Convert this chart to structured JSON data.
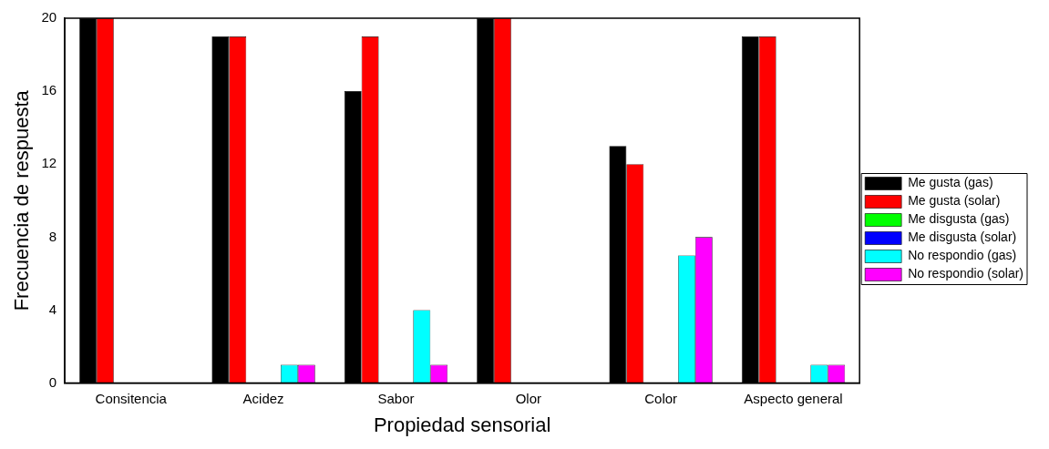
{
  "chart_data": {
    "type": "bar",
    "xlabel": "Propiedad sensorial",
    "ylabel": "Frecuencia de respuesta",
    "categories": [
      "Consitencia",
      "Acidez",
      "Sabor",
      "Olor",
      "Color",
      "Aspecto general"
    ],
    "series": [
      {
        "name": "Me gusta (gas)",
        "color": "#000000",
        "values": [
          20,
          19,
          16,
          20,
          13,
          19
        ]
      },
      {
        "name": "Me gusta (solar)",
        "color": "#ff0000",
        "values": [
          20,
          19,
          19,
          20,
          12,
          19
        ]
      },
      {
        "name": "Me disgusta (gas)",
        "color": "#00ff00",
        "values": [
          0,
          0,
          0,
          0,
          0,
          0
        ]
      },
      {
        "name": "Me disgusta (solar)",
        "color": "#0000ff",
        "values": [
          0,
          0,
          0,
          0,
          0,
          0
        ]
      },
      {
        "name": "No respondio (gas)",
        "color": "#00ffff",
        "values": [
          0,
          1,
          4,
          0,
          7,
          1
        ]
      },
      {
        "name": "No respondio (solar)",
        "color": "#ff00ff",
        "values": [
          0,
          1,
          1,
          0,
          8,
          1
        ]
      }
    ],
    "ylim": [
      0,
      20
    ],
    "yticks": [
      0,
      4,
      8,
      12,
      16,
      20
    ],
    "grid": false,
    "legend": "right"
  }
}
